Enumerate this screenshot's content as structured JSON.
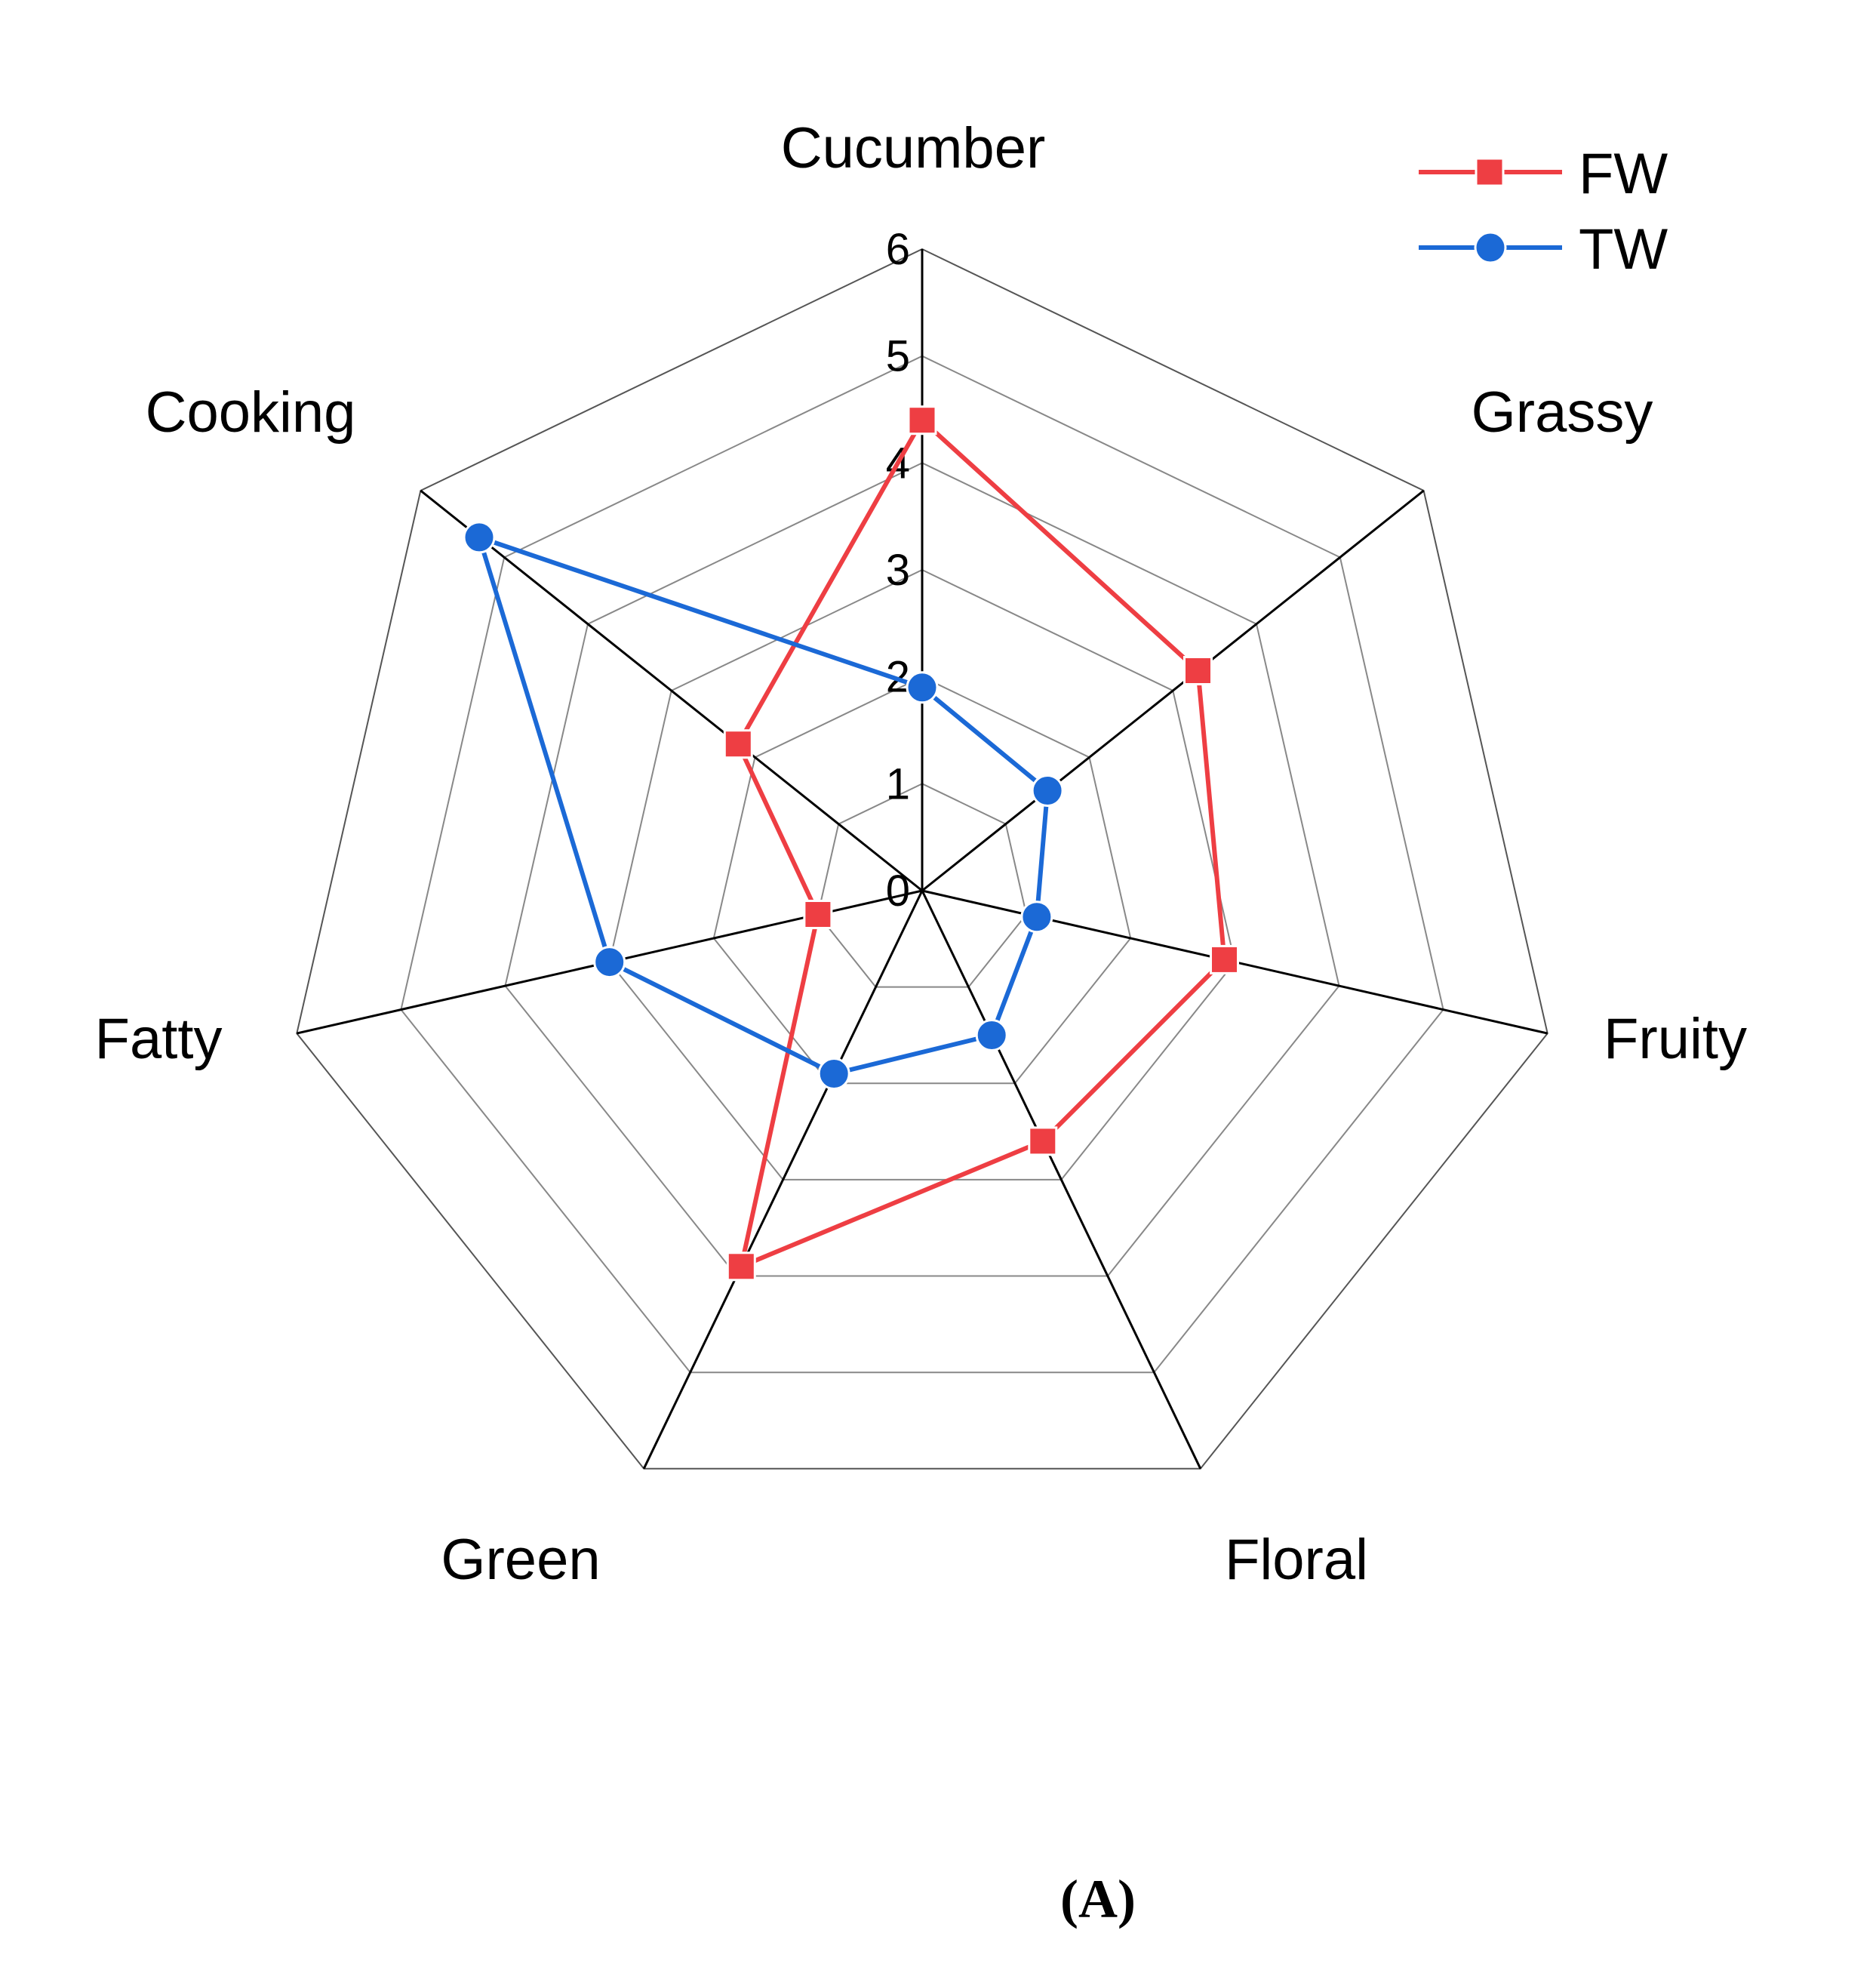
{
  "chart_data": {
    "type": "radar",
    "axes": [
      "Cucumber",
      "Grassy",
      "Fruity",
      "Floral",
      "Green",
      "Fatty",
      "Cooking"
    ],
    "rlim": [
      0,
      6
    ],
    "ticks": [
      "0",
      "1",
      "2",
      "3",
      "4",
      "5",
      "6"
    ],
    "series": [
      {
        "name": "FW",
        "color": "#ee3e43",
        "marker": "square",
        "values": [
          4.4,
          3.3,
          2.9,
          2.6,
          3.9,
          1.0,
          2.2
        ]
      },
      {
        "name": "TW",
        "color": "#1b69d6",
        "marker": "circle",
        "values": [
          1.9,
          1.5,
          1.1,
          1.5,
          1.9,
          3.0,
          5.3
        ]
      }
    ],
    "legend_position": "top-right",
    "grid": true
  },
  "caption": "(A)"
}
